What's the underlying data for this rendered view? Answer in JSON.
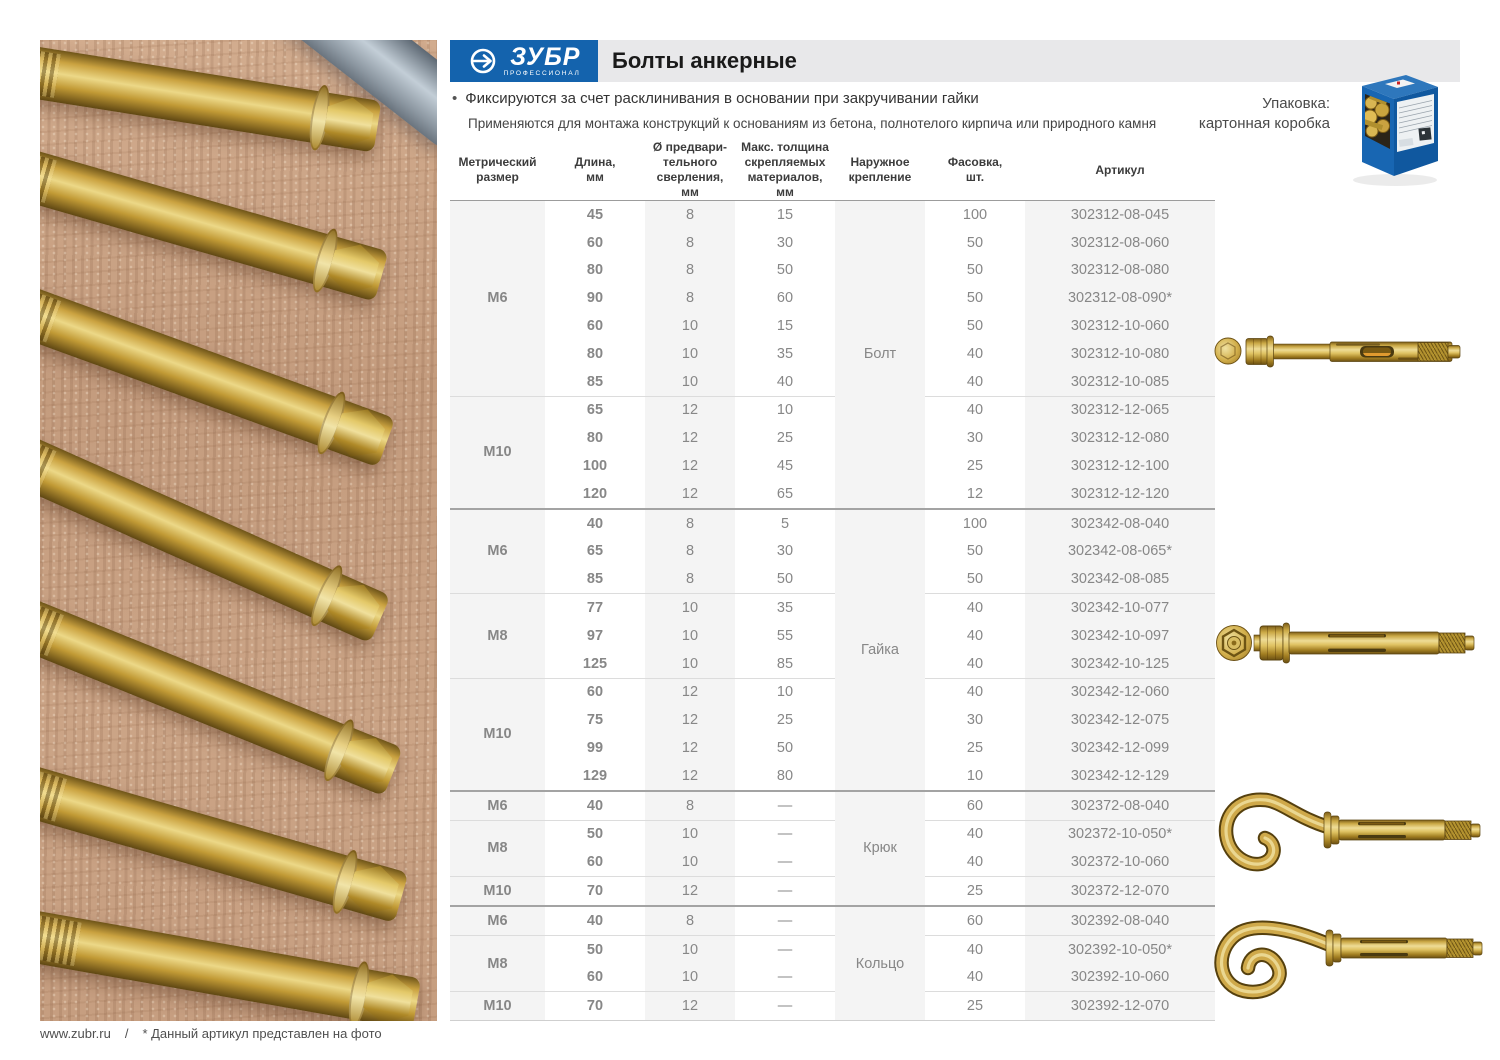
{
  "logo": {
    "name": "ЗУБР",
    "subtitle": "ПРОФЕССИОНАЛ",
    "icon": "zubr-arrow-circle-icon"
  },
  "header": {
    "title": "Болты анкерные",
    "bullets": [
      "Фиксируются за счет расклинивания в основании при закручивании гайки",
      "Применяются для монтажа конструкций к основаниям из бетона, полнотелого кирпича или природного камня"
    ]
  },
  "packaging": {
    "line1": "Упаковка:",
    "line2": "картонная коробка",
    "image": "cardboard-box-image"
  },
  "table": {
    "headers": [
      "Метрический\nразмер",
      "Длина,\nмм",
      "Ø предвари-\nтельного\nсверления, мм",
      "Макс. толщина\nскрепляемых\nматериалов,\nмм",
      "Наружное\nкрепление",
      "Фасовка,\nшт.",
      "Артикул"
    ],
    "groups": [
      {
        "fastening": "Болт",
        "subgroups": [
          {
            "size": "М6",
            "rows": [
              [
                "45",
                "8",
                "15",
                "100",
                "302312-08-045"
              ],
              [
                "60",
                "8",
                "30",
                "50",
                "302312-08-060"
              ],
              [
                "80",
                "8",
                "50",
                "50",
                "302312-08-080"
              ],
              [
                "90",
                "8",
                "60",
                "50",
                "302312-08-090*"
              ],
              [
                "60",
                "10",
                "15",
                "50",
                "302312-10-060"
              ],
              [
                "80",
                "10",
                "35",
                "40",
                "302312-10-080"
              ],
              [
                "85",
                "10",
                "40",
                "40",
                "302312-10-085"
              ]
            ]
          },
          {
            "size": "М10",
            "rows": [
              [
                "65",
                "12",
                "10",
                "40",
                "302312-12-065"
              ],
              [
                "80",
                "12",
                "25",
                "30",
                "302312-12-080"
              ],
              [
                "100",
                "12",
                "45",
                "25",
                "302312-12-100"
              ],
              [
                "120",
                "12",
                "65",
                "12",
                "302312-12-120"
              ]
            ]
          }
        ]
      },
      {
        "fastening": "Гайка",
        "subgroups": [
          {
            "size": "М6",
            "rows": [
              [
                "40",
                "8",
                "5",
                "100",
                "302342-08-040"
              ],
              [
                "65",
                "8",
                "30",
                "50",
                "302342-08-065*"
              ],
              [
                "85",
                "8",
                "50",
                "50",
                "302342-08-085"
              ]
            ]
          },
          {
            "size": "М8",
            "rows": [
              [
                "77",
                "10",
                "35",
                "40",
                "302342-10-077"
              ],
              [
                "97",
                "10",
                "55",
                "40",
                "302342-10-097"
              ],
              [
                "125",
                "10",
                "85",
                "40",
                "302342-10-125"
              ]
            ]
          },
          {
            "size": "М10",
            "rows": [
              [
                "60",
                "12",
                "10",
                "40",
                "302342-12-060"
              ],
              [
                "75",
                "12",
                "25",
                "30",
                "302342-12-075"
              ],
              [
                "99",
                "12",
                "50",
                "25",
                "302342-12-099"
              ],
              [
                "129",
                "12",
                "80",
                "10",
                "302342-12-129"
              ]
            ]
          }
        ]
      },
      {
        "fastening": "Крюк",
        "subgroups": [
          {
            "size": "М6",
            "rows": [
              [
                "40",
                "8",
                "—",
                "60",
                "302372-08-040"
              ]
            ]
          },
          {
            "size": "М8",
            "rows": [
              [
                "50",
                "10",
                "—",
                "40",
                "302372-10-050*"
              ],
              [
                "60",
                "10",
                "—",
                "40",
                "302372-10-060"
              ]
            ]
          },
          {
            "size": "М10",
            "rows": [
              [
                "70",
                "12",
                "—",
                "25",
                "302372-12-070"
              ]
            ]
          }
        ]
      },
      {
        "fastening": "Кольцо",
        "subgroups": [
          {
            "size": "М6",
            "rows": [
              [
                "40",
                "8",
                "—",
                "60",
                "302392-08-040"
              ]
            ]
          },
          {
            "size": "М8",
            "rows": [
              [
                "50",
                "10",
                "—",
                "40",
                "302392-10-050*"
              ],
              [
                "60",
                "10",
                "—",
                "40",
                "302392-10-060"
              ]
            ]
          },
          {
            "size": "М10",
            "rows": [
              [
                "70",
                "12",
                "—",
                "25",
                "302392-12-070"
              ]
            ]
          }
        ]
      }
    ]
  },
  "product_images": [
    "anchor-with-bolt-image",
    "anchor-with-nut-image",
    "anchor-with-hook-image",
    "anchor-with-ring-image"
  ],
  "footer": {
    "site": "www.zubr.ru",
    "separator": "/",
    "note": "* Данный артикул представлен на фото"
  },
  "colors": {
    "brand_blue": "#1463ad",
    "title_strip": "#e8e8ea",
    "table_column_gray": "#f4f4f4",
    "gold": "#c9a43e"
  }
}
